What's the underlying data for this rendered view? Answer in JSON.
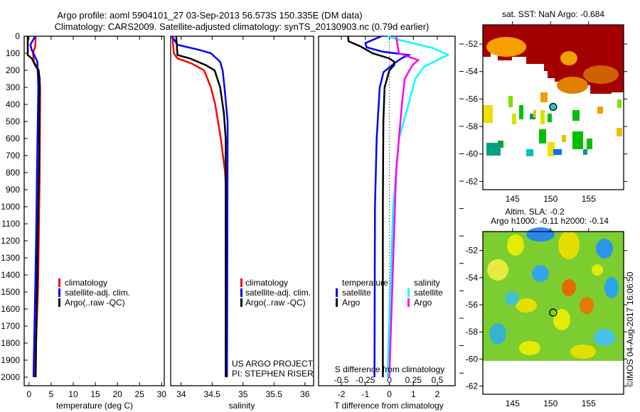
{
  "header": {
    "title_line1": "Argo profile: aoml 5904101_27 03-Sep-2013 56.573S 150.335E (DM data)",
    "title_line2": "Climatology: CARS2009. Satellite-adjusted climatology: synTS_20130903.nc (0.79d earlier)"
  },
  "colors": {
    "climatology": "#ff0000",
    "satellite": "#0000ff",
    "argo": "#000000",
    "sal_satellite": "#00ffff",
    "sal_argo": "#ff00ff"
  },
  "chart_data": [
    {
      "type": "line",
      "id": "temperature",
      "xlabel": "temperature (deg C)",
      "ylabel": "",
      "xlim": [
        -1.1,
        30.6
      ],
      "ylim": [
        2050,
        0
      ],
      "xticks": [
        0,
        5,
        10,
        15,
        20,
        25,
        30
      ],
      "yticks": [
        0,
        100,
        200,
        300,
        400,
        500,
        600,
        700,
        800,
        900,
        1000,
        1100,
        1200,
        1300,
        1400,
        1500,
        1600,
        1700,
        1800,
        1900,
        2000
      ],
      "legend": [
        "climatology",
        "satellite-adj. clim.",
        "Argo(..raw -QC)"
      ],
      "series": [
        {
          "name": "climatology",
          "color": "#ff0000",
          "depth": [
            0,
            60,
            100,
            150,
            200,
            300,
            800,
            1200,
            1500,
            2000
          ],
          "values": [
            1.5,
            1.4,
            0.9,
            1.1,
            2.2,
            2.5,
            2.4,
            2.2,
            2.0,
            1.3
          ]
        },
        {
          "name": "satellite-adj. clim.",
          "color": "#0000ff",
          "depth": [
            0,
            50,
            80,
            100,
            150,
            300,
            800,
            1200,
            1500,
            2000
          ],
          "values": [
            1.4,
            0.3,
            0.6,
            1.0,
            1.9,
            2.1,
            1.8,
            1.6,
            1.4,
            1.0
          ]
        },
        {
          "name": "Argo(..raw -QC)",
          "color": "#000000",
          "depth": [
            0,
            110,
            130,
            170,
            200,
            250,
            700,
            1000,
            1500,
            1800,
            2000
          ],
          "values": [
            -0.3,
            -0.3,
            0.6,
            1.4,
            2.1,
            2.4,
            2.3,
            2.1,
            1.8,
            1.6,
            1.5
          ]
        }
      ]
    },
    {
      "type": "line",
      "id": "salinity",
      "xlabel": "salinity",
      "xlim": [
        33.83,
        36.14
      ],
      "ylim": [
        2050,
        0
      ],
      "xticks": [
        34,
        34.5,
        35,
        35.5,
        36
      ],
      "xticklabels": [
        "34",
        "34.5",
        "35",
        "35.5",
        "36"
      ],
      "legend": [
        "climatology",
        "satellite-adj. clim.",
        "Argo(..raw -QC)"
      ],
      "annotation": [
        "US ARGO PROJECT",
        "PI: STEPHEN RISER"
      ],
      "series": [
        {
          "name": "climatology",
          "color": "#ff0000",
          "depth": [
            0,
            100,
            130,
            160,
            200,
            300,
            400,
            600,
            800,
            1000,
            2000
          ],
          "values": [
            33.86,
            33.88,
            33.94,
            34.17,
            34.37,
            34.48,
            34.55,
            34.64,
            34.71,
            34.74,
            34.74
          ]
        },
        {
          "name": "satellite-adj. clim.",
          "color": "#0000ff",
          "depth": [
            0,
            50,
            80,
            100,
            150,
            200,
            300,
            500,
            2000
          ],
          "values": [
            33.85,
            33.94,
            34.29,
            34.48,
            34.63,
            34.67,
            34.7,
            34.75,
            34.74
          ]
        },
        {
          "name": "Argo(..raw -QC)",
          "color": "#000000",
          "depth": [
            0,
            110,
            130,
            170,
            200,
            300,
            450,
            600,
            2000
          ],
          "values": [
            33.92,
            33.94,
            34.14,
            34.4,
            34.54,
            34.63,
            34.69,
            34.72,
            34.72
          ]
        }
      ]
    },
    {
      "type": "line",
      "id": "difference",
      "xlabel": "T difference from climatology",
      "x2label": "S difference from climatology",
      "xlim": [
        -2.95,
        2.74
      ],
      "ylim": [
        2050,
        0
      ],
      "xticks": [
        -2,
        -1,
        0,
        1,
        2
      ],
      "x2ticks": [
        -0.5,
        -0.25,
        0,
        0.25,
        0.5
      ],
      "x2ticklabels": [
        "-0.5",
        "-0.25",
        "0",
        "0.25",
        "0.5"
      ],
      "legend_headers": [
        "temperature",
        "salinity"
      ],
      "legend": [
        "satellite",
        "Argo",
        "satellite",
        "Argo"
      ],
      "series": [
        {
          "name": "T satellite",
          "axis": "T",
          "color": "#0000ff",
          "depth": [
            0,
            40,
            65,
            90,
            110,
            130,
            160,
            210,
            300,
            600,
            1000,
            2000
          ],
          "values": [
            -0.33,
            -1.0,
            -0.95,
            -0.3,
            0.8,
            0.5,
            0.2,
            -0.24,
            -0.4,
            -0.53,
            -0.6,
            -0.62
          ]
        },
        {
          "name": "T Argo",
          "axis": "T",
          "color": "#000000",
          "depth": [
            0,
            30,
            60,
            100,
            130,
            150,
            170,
            200,
            250,
            300,
            500,
            1000,
            2000
          ],
          "values": [
            -1.72,
            -1.7,
            -1.2,
            -0.7,
            0,
            0.2,
            0.2,
            0,
            -0.1,
            -0.2,
            -0.25,
            -0.27,
            -0.27
          ]
        },
        {
          "name": "S satellite",
          "axis": "S",
          "color": "#00ffff",
          "depth": [
            0,
            20,
            70,
            110,
            140,
            180,
            250,
            400,
            600,
            1000,
            2000
          ],
          "values": [
            -0.02,
            0.09,
            0.46,
            0.61,
            0.5,
            0.36,
            0.27,
            0.2,
            0.1,
            0.04,
            -0.02
          ]
        },
        {
          "name": "S Argo",
          "axis": "S",
          "color": "#ff00ff",
          "depth": [
            0,
            100,
            140,
            170,
            250,
            400,
            800,
            2000
          ],
          "values": [
            0.07,
            0.1,
            0.3,
            0.24,
            0.16,
            0.13,
            0.07,
            0.0
          ]
        }
      ]
    },
    {
      "type": "heatmap",
      "id": "sst_map",
      "title": "sat. SST: NaN Argo: -0.684",
      "xlim": [
        141.1,
        159.6
      ],
      "ylim": [
        -62.6,
        -50.6
      ],
      "xticks": [
        145,
        150,
        155
      ],
      "yticks": [
        -52,
        -54,
        -56,
        -58,
        -60,
        -62
      ],
      "argo_position": {
        "lon": 150.335,
        "lat": -56.573
      }
    },
    {
      "type": "heatmap",
      "id": "sla_map",
      "title_line1": "Altim. SLA: -0.2",
      "title_line2": "Argo h1000: -0.11 h2000: -0.14",
      "xlim": [
        141.1,
        159.6
      ],
      "ylim": [
        -62.6,
        -50.6
      ],
      "xticks": [
        145,
        150,
        155
      ],
      "yticks": [
        -52,
        -54,
        -56,
        -58,
        -60,
        -62
      ],
      "argo_position": {
        "lon": 150.335,
        "lat": -56.573
      }
    }
  ],
  "footer": {
    "credit": "©IMOS 04-Aug-2017 16:06:50"
  }
}
